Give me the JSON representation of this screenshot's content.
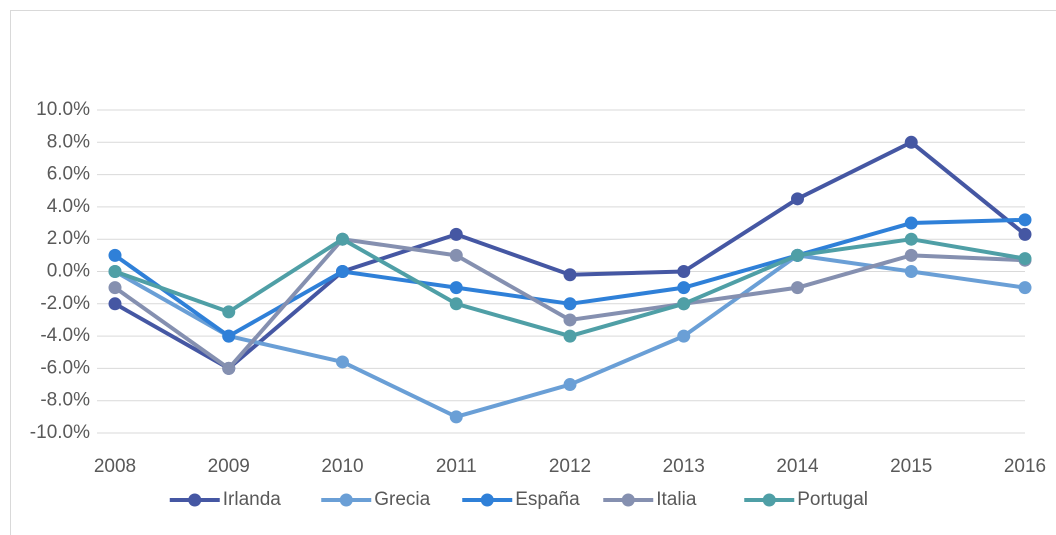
{
  "chart_data": {
    "type": "line",
    "categories": [
      "2008",
      "2009",
      "2010",
      "2011",
      "2012",
      "2013",
      "2014",
      "2015",
      "2016"
    ],
    "series": [
      {
        "name": "Irlanda",
        "color": "#4557a3",
        "values": [
          -2,
          -6,
          0,
          2.3,
          -0.2,
          0,
          4.5,
          8,
          2.3
        ]
      },
      {
        "name": "Grecia",
        "color": "#6a9fd6",
        "values": [
          0,
          -4,
          -5.6,
          -9,
          -7,
          -4,
          1,
          0,
          -1
        ]
      },
      {
        "name": "España",
        "color": "#2f80d8",
        "values": [
          1,
          -4,
          0,
          -1,
          -2,
          -1,
          1,
          3,
          3.2
        ]
      },
      {
        "name": "Italia",
        "color": "#8590b0",
        "values": [
          -1,
          -6,
          2,
          1,
          -3,
          -2,
          -1,
          1,
          0.7
        ]
      },
      {
        "name": "Portugal",
        "color": "#4f9fa6",
        "values": [
          0,
          -2.5,
          2,
          -2,
          -4,
          -2,
          1,
          2,
          0.8
        ]
      }
    ],
    "ylim": [
      -10,
      10
    ],
    "yticks": [
      {
        "value": -10,
        "label": "-10.0%"
      },
      {
        "value": -8,
        "label": "-8.0%"
      },
      {
        "value": -6,
        "label": "-6.0%"
      },
      {
        "value": -4,
        "label": "-4.0%"
      },
      {
        "value": -2,
        "label": "-2.0%"
      },
      {
        "value": 0,
        "label": "0.0%"
      },
      {
        "value": 2,
        "label": "2.0%"
      },
      {
        "value": 4,
        "label": "4.0%"
      },
      {
        "value": 6,
        "label": "6.0%"
      },
      {
        "value": 8,
        "label": "8.0%"
      },
      {
        "value": 10,
        "label": "10.0%"
      }
    ],
    "grid": true,
    "legend": "bottom"
  }
}
